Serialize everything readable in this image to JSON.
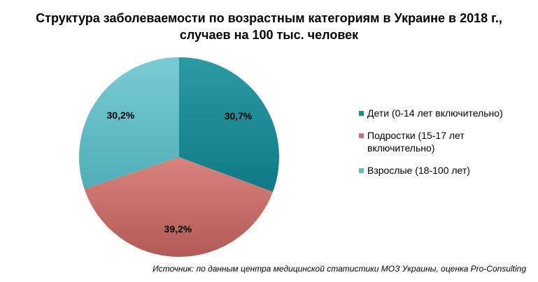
{
  "chart_data": {
    "type": "pie",
    "title": "Структура заболеваемости по возрастным категориям в Украине в 2018 г.,",
    "subtitle": "случаев на 100 тыс. человек",
    "categories": [
      "Дети (0-14 лет включительно)",
      "Подростки (15-17 лет включительно)",
      "Взрослые (18-100 лет)"
    ],
    "values": [
      30.7,
      39.2,
      30.2
    ],
    "value_labels": [
      "30,7%",
      "39,2%",
      "30,2%"
    ],
    "colors": [
      "#1b8d96",
      "#c76f69",
      "#5fbcc5"
    ],
    "legend_position": "right",
    "source": "Источник: по данным центра медицинской статистики МОЗ Украины, оценка Pro-Consulting"
  }
}
